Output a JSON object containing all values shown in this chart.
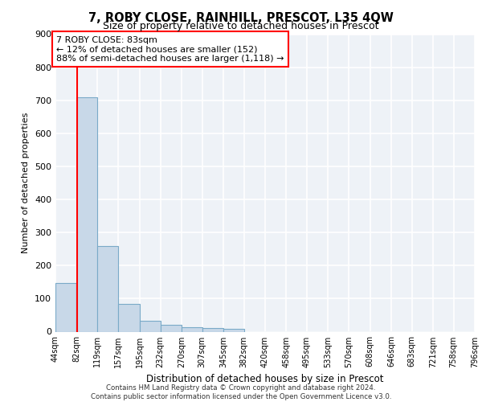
{
  "title": "7, ROBY CLOSE, RAINHILL, PRESCOT, L35 4QW",
  "subtitle": "Size of property relative to detached houses in Prescot",
  "xlabel": "Distribution of detached houses by size in Prescot",
  "ylabel": "Number of detached properties",
  "bar_edges": [
    44,
    82,
    119,
    157,
    195,
    232,
    270,
    307,
    345,
    382,
    420,
    458,
    495,
    533,
    570,
    608,
    646,
    683,
    721,
    758,
    796
  ],
  "bar_heights": [
    148,
    710,
    260,
    85,
    33,
    20,
    13,
    10,
    8,
    0,
    0,
    0,
    0,
    0,
    0,
    0,
    0,
    0,
    0,
    0
  ],
  "bar_color": "#c8d8e8",
  "bar_edge_color": "#7aaac8",
  "property_size": 83,
  "annotation_text": "7 ROBY CLOSE: 83sqm\n← 12% of detached houses are smaller (152)\n88% of semi-detached houses are larger (1,118) →",
  "annotation_box_color": "white",
  "annotation_box_edge_color": "red",
  "vline_color": "red",
  "ylim": [
    0,
    900
  ],
  "yticks": [
    0,
    100,
    200,
    300,
    400,
    500,
    600,
    700,
    800,
    900
  ],
  "background_color": "#eef2f7",
  "grid_color": "white",
  "footer_text": "Contains HM Land Registry data © Crown copyright and database right 2024.\nContains public sector information licensed under the Open Government Licence v3.0.",
  "tick_labels": [
    "44sqm",
    "82sqm",
    "119sqm",
    "157sqm",
    "195sqm",
    "232sqm",
    "270sqm",
    "307sqm",
    "345sqm",
    "382sqm",
    "420sqm",
    "458sqm",
    "495sqm",
    "533sqm",
    "570sqm",
    "608sqm",
    "646sqm",
    "683sqm",
    "721sqm",
    "758sqm",
    "796sqm"
  ]
}
